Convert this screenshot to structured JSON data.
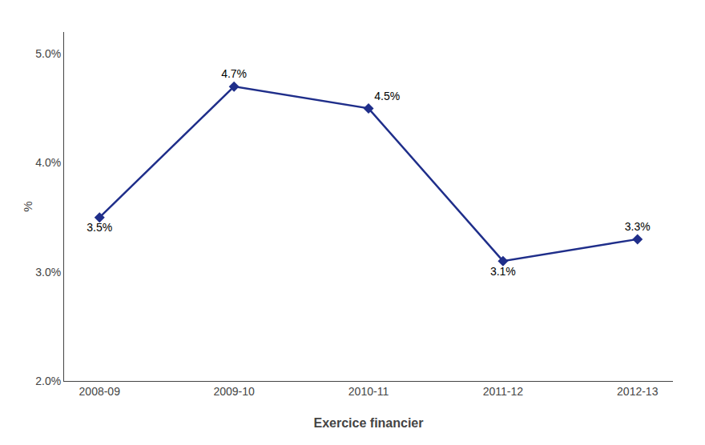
{
  "chart_data": {
    "type": "line",
    "categories": [
      "2008-09",
      "2009-10",
      "2010-11",
      "2011-12",
      "2012-13"
    ],
    "values": [
      3.5,
      4.7,
      4.5,
      3.1,
      3.3
    ],
    "value_labels": [
      "3.5%",
      "4.7%",
      "4.5%",
      "3.1%",
      "3.3%"
    ],
    "data_labels": true,
    "color": "#1F2E8A",
    "marker": "diamond",
    "line_style": "solid",
    "xlabel": "Exercice financier",
    "ylabel": "%",
    "ylim": [
      2.0,
      5.2
    ],
    "yticks": [
      {
        "value": 2.0,
        "label": "2.0%"
      },
      {
        "value": 3.0,
        "label": "3.0%"
      },
      {
        "value": 4.0,
        "label": "4.0%"
      },
      {
        "value": 5.0,
        "label": "5.0%"
      }
    ],
    "grid": false
  }
}
